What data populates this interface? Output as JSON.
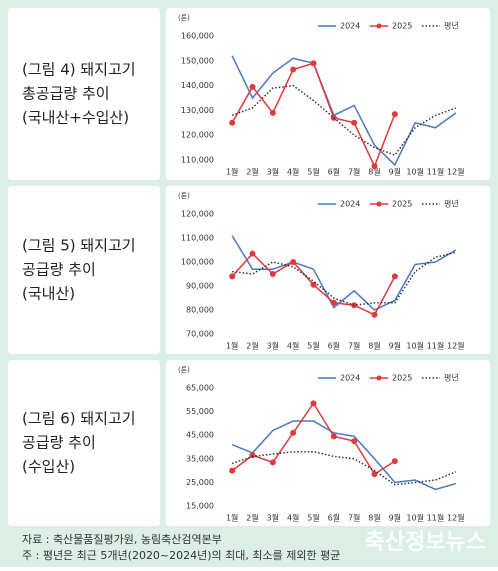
{
  "chart_data": [
    {
      "type": "line",
      "title_lines": [
        "(그림 4) 돼지고기",
        "총공급량 추이",
        "(국내산+수입산)"
      ],
      "unit": "(톤)",
      "categories": [
        "1월",
        "2월",
        "3월",
        "4월",
        "5월",
        "6월",
        "7월",
        "8월",
        "9월",
        "10월",
        "11월",
        "12월"
      ],
      "series": [
        {
          "name": "2024",
          "color": "#4a78c2",
          "style": "solid",
          "marker": false,
          "values": [
            152000,
            135000,
            145000,
            151000,
            149000,
            128000,
            132000,
            116000,
            108000,
            125000,
            123000,
            129000
          ]
        },
        {
          "name": "2025",
          "color": "#e03a3e",
          "style": "solid",
          "marker": true,
          "values": [
            125000,
            139500,
            129000,
            146500,
            149000,
            127000,
            125000,
            107500,
            128500,
            null,
            null,
            null
          ]
        },
        {
          "name": "평년",
          "color": "#333333",
          "style": "dotted",
          "marker": false,
          "values": [
            128000,
            131000,
            139000,
            140000,
            134000,
            127000,
            120000,
            115000,
            112000,
            123000,
            128000,
            131000
          ]
        }
      ],
      "ylim": [
        110000,
        160000
      ],
      "yticks": [
        {
          "value": 110000,
          "label": "110,000"
        },
        {
          "value": 120000,
          "label": "120,000"
        },
        {
          "value": 130000,
          "label": "130,000"
        },
        {
          "value": 140000,
          "label": "140,000"
        },
        {
          "value": 150000,
          "label": "150,000"
        },
        {
          "value": 160000,
          "label": "160,000"
        }
      ],
      "grid": false,
      "legend": "top-right"
    },
    {
      "type": "line",
      "title_lines": [
        "(그림 5) 돼지고기",
        "공급량 추이",
        "(국내산)"
      ],
      "unit": "(톤)",
      "categories": [
        "1월",
        "2월",
        "3월",
        "4월",
        "5월",
        "6월",
        "7월",
        "8월",
        "9월",
        "10월",
        "11월",
        "12월"
      ],
      "series": [
        {
          "name": "2024",
          "color": "#4a78c2",
          "style": "solid",
          "marker": false,
          "values": [
            111000,
            97000,
            97000,
            100000,
            97000,
            81000,
            88000,
            80000,
            84000,
            99000,
            100000,
            105000
          ]
        },
        {
          "name": "2025",
          "color": "#e03a3e",
          "style": "solid",
          "marker": true,
          "values": [
            94000,
            103500,
            95000,
            100000,
            90500,
            83000,
            82000,
            78000,
            94000,
            null,
            null,
            null
          ]
        },
        {
          "name": "평년",
          "color": "#333333",
          "style": "dotted",
          "marker": false,
          "values": [
            96000,
            95000,
            100000,
            98000,
            92000,
            85000,
            82000,
            83000,
            83000,
            96000,
            102000,
            104000
          ]
        }
      ],
      "ylim": [
        70000,
        120000
      ],
      "yticks": [
        {
          "value": 70000,
          "label": "70,000"
        },
        {
          "value": 80000,
          "label": "80,000"
        },
        {
          "value": 90000,
          "label": "90,000"
        },
        {
          "value": 100000,
          "label": "100,000"
        },
        {
          "value": 110000,
          "label": "110,000"
        },
        {
          "value": 120000,
          "label": "120,000"
        }
      ],
      "grid": false,
      "legend": "top-right"
    },
    {
      "type": "line",
      "title_lines": [
        "(그림 6) 돼지고기",
        "공급량 추이",
        "(수입산)"
      ],
      "unit": "(톤)",
      "categories": [
        "1월",
        "2월",
        "3월",
        "4월",
        "5월",
        "6월",
        "7월",
        "8월",
        "9월",
        "10월",
        "11월",
        "12월"
      ],
      "series": [
        {
          "name": "2024",
          "color": "#4a78c2",
          "style": "solid",
          "marker": false,
          "values": [
            41000,
            37500,
            47000,
            51000,
            51000,
            46000,
            44500,
            35000,
            25000,
            26000,
            22000,
            24500
          ]
        },
        {
          "name": "2025",
          "color": "#e03a3e",
          "style": "solid",
          "marker": true,
          "values": [
            30000,
            36500,
            33500,
            46000,
            58500,
            44500,
            42500,
            28500,
            34000,
            null,
            null,
            null
          ]
        },
        {
          "name": "평년",
          "color": "#333333",
          "style": "dotted",
          "marker": false,
          "values": [
            33000,
            36000,
            37000,
            38000,
            38000,
            36000,
            35000,
            30000,
            24000,
            25000,
            26000,
            29500
          ]
        }
      ],
      "ylim": [
        15000,
        65000
      ],
      "yticks": [
        {
          "value": 15000,
          "label": "15,000"
        },
        {
          "value": 25000,
          "label": "25,000"
        },
        {
          "value": 35000,
          "label": "35,000"
        },
        {
          "value": 45000,
          "label": "45,000"
        },
        {
          "value": 55000,
          "label": "55,000"
        },
        {
          "value": 65000,
          "label": "65,000"
        }
      ],
      "grid": false,
      "legend": "top-right"
    }
  ],
  "source": "자료 : 축산물품질평가원, 농림축산검역본부",
  "note": "주 : 평년은 최근 5개년(2020~2024년)의 최대, 최소를 제외한 평균",
  "watermark": "축산정보뉴스"
}
